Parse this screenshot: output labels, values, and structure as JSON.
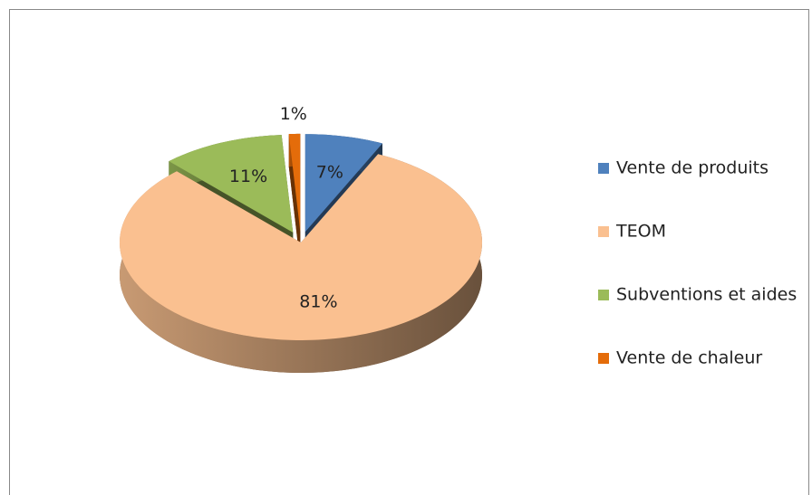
{
  "chart_data": {
    "type": "pie",
    "three_d": true,
    "exploded": true,
    "categories": [
      "Vente de produits",
      "TEOM",
      "Subventions et aides",
      "Vente de chaleur"
    ],
    "values": [
      7,
      81,
      11,
      1
    ],
    "value_labels": [
      "7%",
      "81%",
      "11%",
      "1%"
    ],
    "colors": [
      "#4f81bd",
      "#fac090",
      "#9bbb59",
      "#e46c0a"
    ],
    "legend": "right"
  }
}
